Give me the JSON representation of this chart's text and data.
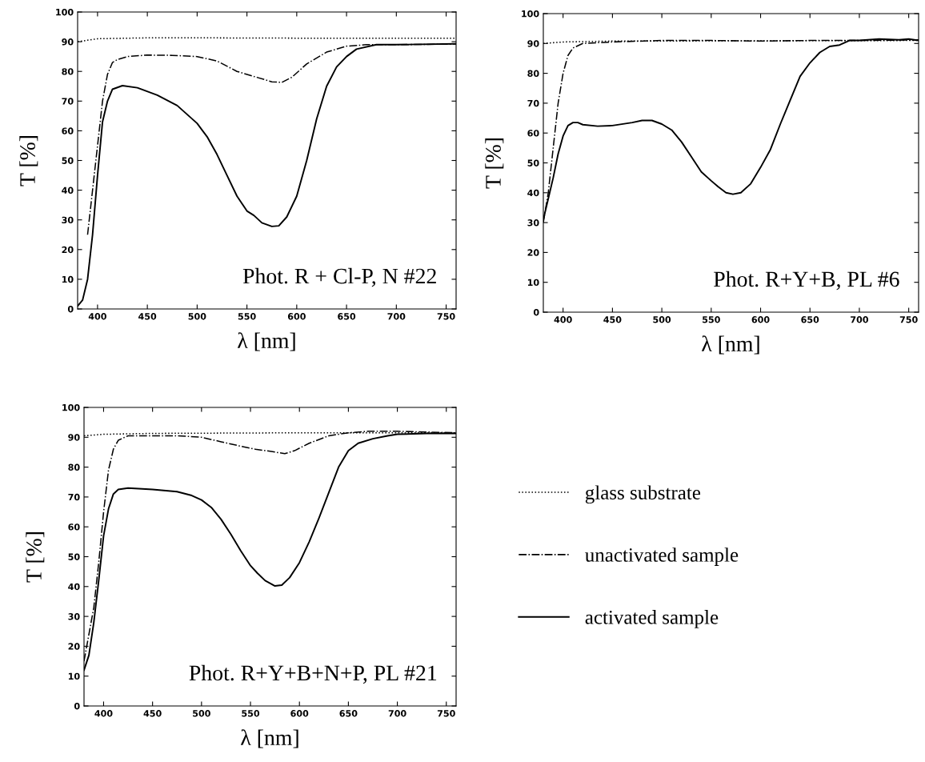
{
  "chart_data": [
    {
      "type": "line",
      "xlabel": "λ [nm]",
      "ylabel": "T [%]",
      "annotations": [
        "Phot. R + Cl-P, N #22"
      ],
      "xlim": [
        380,
        760
      ],
      "ylim": [
        0,
        100
      ],
      "xticks": [
        400,
        450,
        500,
        550,
        600,
        650,
        700,
        750
      ],
      "yticks": [
        0,
        10,
        20,
        30,
        40,
        50,
        60,
        70,
        80,
        90,
        100
      ],
      "grid": false,
      "legend": false,
      "series": [
        {
          "color": "#000000",
          "line_style": "dotted",
          "x": [
            380,
            400,
            450,
            500,
            600,
            700,
            760
          ],
          "values": [
            90,
            91,
            91.3,
            91.3,
            91.2,
            91.2,
            91.2
          ]
        },
        {
          "color": "#000000",
          "line_style": "dashdot",
          "x": [
            390,
            395,
            400,
            405,
            410,
            415,
            420,
            430,
            450,
            475,
            500,
            520,
            540,
            560,
            575,
            585,
            595,
            610,
            630,
            650,
            670,
            700,
            760
          ],
          "values": [
            25,
            40,
            55,
            70,
            79,
            83,
            84,
            85,
            85.5,
            85.4,
            85,
            83.5,
            80,
            78,
            76.5,
            76.3,
            78,
            82.5,
            86.5,
            88.5,
            89,
            89,
            89.2
          ]
        },
        {
          "color": "#000000",
          "line_style": "solid",
          "x": [
            380,
            385,
            390,
            395,
            400,
            405,
            410,
            415,
            425,
            440,
            460,
            480,
            500,
            510,
            520,
            530,
            540,
            550,
            557,
            565,
            575,
            582,
            590,
            600,
            610,
            620,
            630,
            640,
            650,
            660,
            680,
            700,
            760
          ],
          "values": [
            1,
            3,
            10,
            25,
            45,
            63,
            70,
            74,
            75.2,
            74.5,
            72,
            68.5,
            62.5,
            58,
            52,
            45,
            38,
            33,
            31.5,
            29,
            27.8,
            28,
            31,
            38,
            50,
            64,
            75,
            81.5,
            85,
            87.5,
            89,
            89,
            89.3
          ]
        }
      ]
    },
    {
      "type": "line",
      "xlabel": "λ [nm]",
      "ylabel": "T [%]",
      "annotations": [
        "Phot. R+Y+B, PL #6"
      ],
      "xlim": [
        380,
        760
      ],
      "ylim": [
        0,
        100
      ],
      "xticks": [
        400,
        450,
        500,
        550,
        600,
        650,
        700,
        750
      ],
      "yticks": [
        0,
        10,
        20,
        30,
        40,
        50,
        60,
        70,
        80,
        90,
        100
      ],
      "grid": false,
      "legend": false,
      "series": [
        {
          "color": "#000000",
          "line_style": "dotted",
          "x": [
            380,
            400,
            450,
            760
          ],
          "values": [
            90,
            90.5,
            90.8,
            91
          ]
        },
        {
          "color": "#000000",
          "line_style": "dashdot",
          "x": [
            380,
            385,
            390,
            395,
            400,
            405,
            410,
            420,
            450,
            500,
            550,
            600,
            650,
            700,
            760
          ],
          "values": [
            30,
            40,
            55,
            70,
            80,
            86,
            88.5,
            90,
            90.5,
            91,
            91,
            90.8,
            91,
            91,
            91.2
          ]
        },
        {
          "color": "#000000",
          "line_style": "solid",
          "x": [
            380,
            385,
            390,
            395,
            400,
            405,
            410,
            415,
            420,
            435,
            450,
            470,
            480,
            490,
            500,
            510,
            520,
            530,
            540,
            550,
            557,
            565,
            572,
            580,
            590,
            600,
            610,
            620,
            630,
            640,
            650,
            660,
            670,
            680,
            690,
            700,
            720,
            740,
            750,
            760
          ],
          "values": [
            31,
            38,
            45,
            53,
            59,
            62.5,
            63.5,
            63.5,
            62.8,
            62.3,
            62.5,
            63.5,
            64.2,
            64.2,
            63,
            61,
            57,
            52,
            47,
            44,
            42,
            40,
            39.5,
            40,
            43,
            48.5,
            54.5,
            63,
            71,
            79,
            83.5,
            87,
            89,
            89.5,
            91,
            91,
            91.5,
            91.2,
            91.5,
            91
          ]
        }
      ]
    },
    {
      "type": "line",
      "xlabel": "λ [nm]",
      "ylabel": "T [%]",
      "annotations": [
        "Phot. R+Y+B+N+P, PL #21"
      ],
      "xlim": [
        380,
        760
      ],
      "ylim": [
        0,
        100
      ],
      "xticks": [
        400,
        450,
        500,
        550,
        600,
        650,
        700,
        750
      ],
      "yticks": [
        0,
        10,
        20,
        30,
        40,
        50,
        60,
        70,
        80,
        90,
        100
      ],
      "grid": false,
      "legend": "right",
      "series": [
        {
          "name": "glass substrate",
          "color": "#000000",
          "line_style": "dotted",
          "x": [
            380,
            400,
            450,
            600,
            760
          ],
          "values": [
            90.5,
            91,
            91.3,
            91.5,
            91.5
          ]
        },
        {
          "name": "unactivated sample",
          "color": "#000000",
          "line_style": "dashdot",
          "x": [
            380,
            390,
            395,
            400,
            405,
            410,
            415,
            425,
            450,
            475,
            500,
            520,
            540,
            555,
            570,
            585,
            595,
            610,
            630,
            650,
            670,
            700,
            760
          ],
          "values": [
            15,
            33,
            48,
            65,
            79,
            86,
            89,
            90.5,
            90.5,
            90.5,
            90,
            88.5,
            87,
            86,
            85.3,
            84.5,
            85.5,
            88,
            90.5,
            91.5,
            92,
            92,
            91.5
          ]
        },
        {
          "name": "activated sample",
          "color": "#000000",
          "line_style": "solid",
          "x": [
            380,
            385,
            390,
            395,
            400,
            405,
            410,
            415,
            425,
            450,
            475,
            490,
            500,
            510,
            520,
            530,
            540,
            550,
            557,
            565,
            575,
            582,
            590,
            600,
            610,
            620,
            630,
            640,
            650,
            660,
            675,
            690,
            700,
            730,
            760
          ],
          "values": [
            12,
            17,
            28,
            42,
            57,
            66,
            71,
            72.5,
            73,
            72.5,
            71.8,
            70.5,
            69,
            66.5,
            62.5,
            57.5,
            52,
            47,
            44.5,
            42,
            40.2,
            40.5,
            43,
            48,
            55,
            63,
            71.5,
            80,
            85.5,
            88,
            89.5,
            90.5,
            91,
            91.3,
            91.3
          ]
        }
      ]
    }
  ]
}
